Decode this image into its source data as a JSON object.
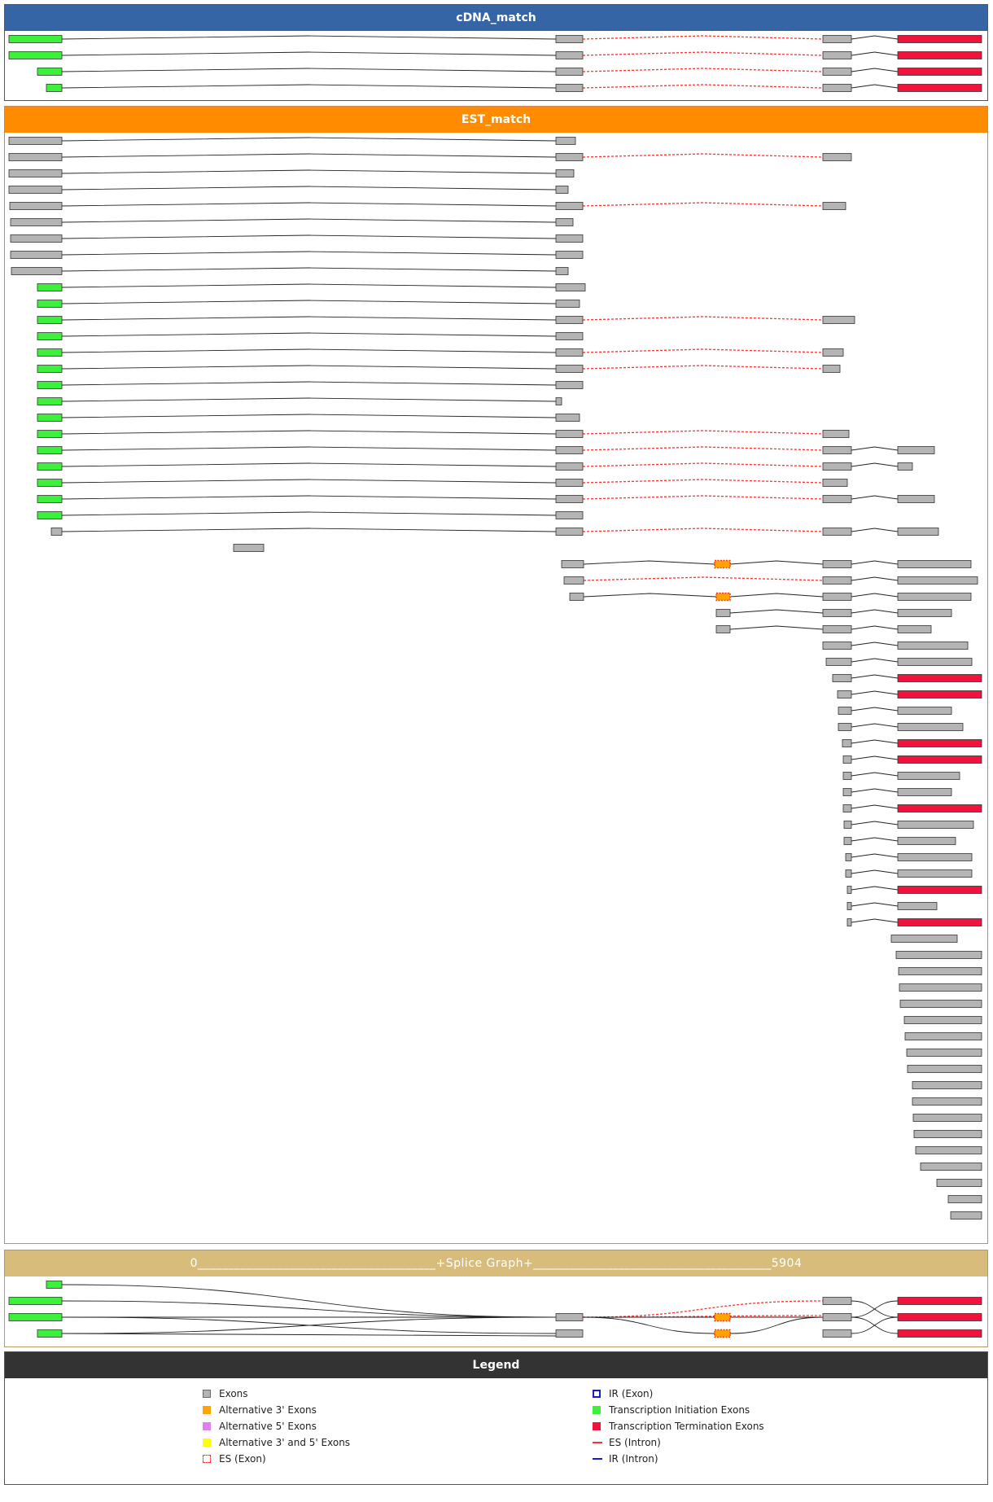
{
  "panels": {
    "cdna": {
      "title": "cDNA_match"
    },
    "est": {
      "title": "EST_match"
    },
    "splice": {
      "title": "0_______________________________________+Splice Graph+_______________________________________5904"
    },
    "legend": {
      "title": "Legend"
    }
  },
  "colors": {
    "exon": "#b4b4b4",
    "initiation": "#3cf03c",
    "termination": "#f0143c",
    "alt3": "#ffa500",
    "alt5": "#e080f0",
    "alt35": "#ffff00",
    "es": "#ff3030",
    "ir": "#1a1ad8"
  },
  "legend": {
    "left": [
      {
        "label": "Exons",
        "swatch": "exon"
      },
      {
        "label": "Alternative 3' Exons",
        "swatch": "alt3"
      },
      {
        "label": "Alternative 5' Exons",
        "swatch": "alt5"
      },
      {
        "label": "Alternative 3' and 5' Exons",
        "swatch": "alt35"
      },
      {
        "label": "ES (Exon)",
        "swatch": "es-exon"
      }
    ],
    "right": [
      {
        "label": "IR (Exon)",
        "swatch": "ir-exon"
      },
      {
        "label": "Transcription Initiation Exons",
        "swatch": "initiation"
      },
      {
        "label": "Transcription Termination Exons",
        "swatch": "termination"
      },
      {
        "label": "ES (Intron)",
        "swatch": "es-intron"
      },
      {
        "label": "IR (Intron)",
        "swatch": "ir-intron"
      }
    ]
  },
  "exon_types": {
    "G": "exon",
    "I": "initiation",
    "T": "termination",
    "A": "alt3-es"
  },
  "rows": {
    "cdna": [
      [
        [
          "I",
          10,
          75
        ],
        [
          "G",
          682,
          715
        ],
        [
          "G",
          1010,
          1045
        ],
        [
          "T",
          1102,
          1205
        ]
      ],
      [
        [
          "I",
          10,
          75
        ],
        [
          "G",
          682,
          715
        ],
        [
          "G",
          1010,
          1045
        ],
        [
          "T",
          1102,
          1205
        ]
      ],
      [
        [
          "I",
          45,
          75
        ],
        [
          "G",
          682,
          715
        ],
        [
          "G",
          1010,
          1045
        ],
        [
          "T",
          1102,
          1205
        ]
      ],
      [
        [
          "I",
          56,
          75
        ],
        [
          "G",
          682,
          715
        ],
        [
          "G",
          1010,
          1045
        ],
        [
          "T",
          1102,
          1205
        ]
      ]
    ],
    "est": [
      [
        [
          "G",
          10,
          75
        ],
        [
          "G",
          682,
          706
        ]
      ],
      [
        [
          "G",
          10,
          75
        ],
        [
          "G",
          682,
          715
        ],
        [
          "G",
          1010,
          1045
        ]
      ],
      [
        [
          "G",
          10,
          75
        ],
        [
          "G",
          682,
          704
        ]
      ],
      [
        [
          "G",
          10,
          75
        ],
        [
          "G",
          682,
          697
        ]
      ],
      [
        [
          "G",
          11,
          75
        ],
        [
          "G",
          682,
          715
        ],
        [
          "G",
          1010,
          1038
        ]
      ],
      [
        [
          "G",
          12,
          75
        ],
        [
          "G",
          682,
          703
        ]
      ],
      [
        [
          "G",
          12,
          75
        ],
        [
          "G",
          682,
          715
        ]
      ],
      [
        [
          "G",
          12,
          75
        ],
        [
          "G",
          682,
          715
        ]
      ],
      [
        [
          "G",
          13,
          75
        ],
        [
          "G",
          682,
          697
        ]
      ],
      [
        [
          "I",
          45,
          75
        ],
        [
          "G",
          682,
          718
        ]
      ],
      [
        [
          "I",
          45,
          75
        ],
        [
          "G",
          682,
          711
        ]
      ],
      [
        [
          "I",
          45,
          75
        ],
        [
          "G",
          682,
          715
        ],
        [
          "G",
          1010,
          1049
        ]
      ],
      [
        [
          "I",
          45,
          75
        ],
        [
          "G",
          682,
          715
        ]
      ],
      [
        [
          "I",
          45,
          75
        ],
        [
          "G",
          682,
          715
        ],
        [
          "G",
          1010,
          1035
        ]
      ],
      [
        [
          "I",
          45,
          75
        ],
        [
          "G",
          682,
          715
        ],
        [
          "G",
          1010,
          1031
        ]
      ],
      [
        [
          "I",
          45,
          75
        ],
        [
          "G",
          682,
          715
        ]
      ],
      [
        [
          "I",
          45,
          75
        ],
        [
          "G",
          682,
          689
        ]
      ],
      [
        [
          "I",
          45,
          75
        ],
        [
          "G",
          682,
          711
        ]
      ],
      [
        [
          "I",
          45,
          75
        ],
        [
          "G",
          682,
          715
        ],
        [
          "G",
          1010,
          1042
        ]
      ],
      [
        [
          "I",
          45,
          75
        ],
        [
          "G",
          682,
          715
        ],
        [
          "G",
          1010,
          1045
        ],
        [
          "G",
          1102,
          1147
        ]
      ],
      [
        [
          "I",
          45,
          75
        ],
        [
          "G",
          682,
          715
        ],
        [
          "G",
          1010,
          1045
        ],
        [
          "G",
          1102,
          1120
        ]
      ],
      [
        [
          "I",
          45,
          75
        ],
        [
          "G",
          682,
          715
        ],
        [
          "G",
          1010,
          1040
        ]
      ],
      [
        [
          "I",
          45,
          75
        ],
        [
          "G",
          682,
          715
        ],
        [
          "G",
          1010,
          1045
        ],
        [
          "G",
          1102,
          1147
        ]
      ],
      [
        [
          "I",
          45,
          75
        ],
        [
          "G",
          682,
          715
        ]
      ],
      [
        [
          "G",
          62,
          75
        ],
        [
          "G",
          682,
          715
        ],
        [
          "G",
          1010,
          1045
        ],
        [
          "G",
          1102,
          1152
        ]
      ],
      [
        [
          "G",
          286,
          323
        ]
      ],
      [
        [
          "G",
          689,
          716
        ],
        [
          "A",
          877,
          896
        ],
        [
          "G",
          1010,
          1045
        ],
        [
          "G",
          1102,
          1192
        ]
      ],
      [
        [
          "G",
          692,
          716
        ],
        [
          "G",
          1010,
          1045
        ],
        [
          "G",
          1102,
          1200
        ]
      ],
      [
        [
          "G",
          699,
          716
        ],
        [
          "A",
          879,
          896
        ],
        [
          "G",
          1010,
          1045
        ],
        [
          "G",
          1102,
          1192
        ]
      ],
      [
        [
          "G",
          879,
          896
        ],
        [
          "G",
          1010,
          1045
        ],
        [
          "G",
          1102,
          1168
        ]
      ],
      [
        [
          "G",
          879,
          896
        ],
        [
          "G",
          1010,
          1045
        ],
        [
          "G",
          1102,
          1143
        ]
      ],
      [
        [
          "G",
          1010,
          1045
        ],
        [
          "G",
          1102,
          1188
        ]
      ],
      [
        [
          "G",
          1014,
          1045
        ],
        [
          "G",
          1102,
          1193
        ]
      ],
      [
        [
          "G",
          1022,
          1045
        ],
        [
          "T",
          1102,
          1205
        ]
      ],
      [
        [
          "G",
          1028,
          1045
        ],
        [
          "T",
          1102,
          1205
        ]
      ],
      [
        [
          "G",
          1029,
          1045
        ],
        [
          "G",
          1102,
          1168
        ]
      ],
      [
        [
          "G",
          1029,
          1045
        ],
        [
          "G",
          1102,
          1182
        ]
      ],
      [
        [
          "G",
          1034,
          1045
        ],
        [
          "T",
          1102,
          1205
        ]
      ],
      [
        [
          "G",
          1035,
          1045
        ],
        [
          "T",
          1102,
          1205
        ]
      ],
      [
        [
          "G",
          1035,
          1045
        ],
        [
          "G",
          1102,
          1178
        ]
      ],
      [
        [
          "G",
          1035,
          1045
        ],
        [
          "G",
          1102,
          1168
        ]
      ],
      [
        [
          "G",
          1035,
          1045
        ],
        [
          "T",
          1102,
          1205
        ]
      ],
      [
        [
          "G",
          1036,
          1045
        ],
        [
          "G",
          1102,
          1195
        ]
      ],
      [
        [
          "G",
          1036,
          1045
        ],
        [
          "G",
          1102,
          1173
        ]
      ],
      [
        [
          "G",
          1038,
          1045
        ],
        [
          "G",
          1102,
          1193
        ]
      ],
      [
        [
          "G",
          1038,
          1045
        ],
        [
          "G",
          1102,
          1193
        ]
      ],
      [
        [
          "G",
          1040,
          1045
        ],
        [
          "T",
          1102,
          1205
        ]
      ],
      [
        [
          "G",
          1040,
          1045
        ],
        [
          "G",
          1102,
          1150
        ]
      ],
      [
        [
          "G",
          1040,
          1045
        ],
        [
          "T",
          1102,
          1205
        ]
      ],
      [
        [
          "G",
          1094,
          1175
        ]
      ],
      [
        [
          "G",
          1100,
          1205
        ]
      ],
      [
        [
          "G",
          1103,
          1205
        ]
      ],
      [
        [
          "G",
          1104,
          1205
        ]
      ],
      [
        [
          "G",
          1105,
          1205
        ]
      ],
      [
        [
          "G",
          1110,
          1205
        ]
      ],
      [
        [
          "G",
          1111,
          1205
        ]
      ],
      [
        [
          "G",
          1113,
          1205
        ]
      ],
      [
        [
          "G",
          1114,
          1205
        ]
      ],
      [
        [
          "G",
          1120,
          1205
        ]
      ],
      [
        [
          "G",
          1120,
          1205
        ]
      ],
      [
        [
          "G",
          1121,
          1205
        ]
      ],
      [
        [
          "G",
          1122,
          1205
        ]
      ],
      [
        [
          "G",
          1124,
          1205
        ]
      ],
      [
        [
          "G",
          1130,
          1205
        ]
      ],
      [
        [
          "G",
          1150,
          1205
        ]
      ],
      [
        [
          "G",
          1164,
          1205
        ]
      ],
      [
        [
          "G",
          1167,
          1205
        ]
      ]
    ]
  }
}
